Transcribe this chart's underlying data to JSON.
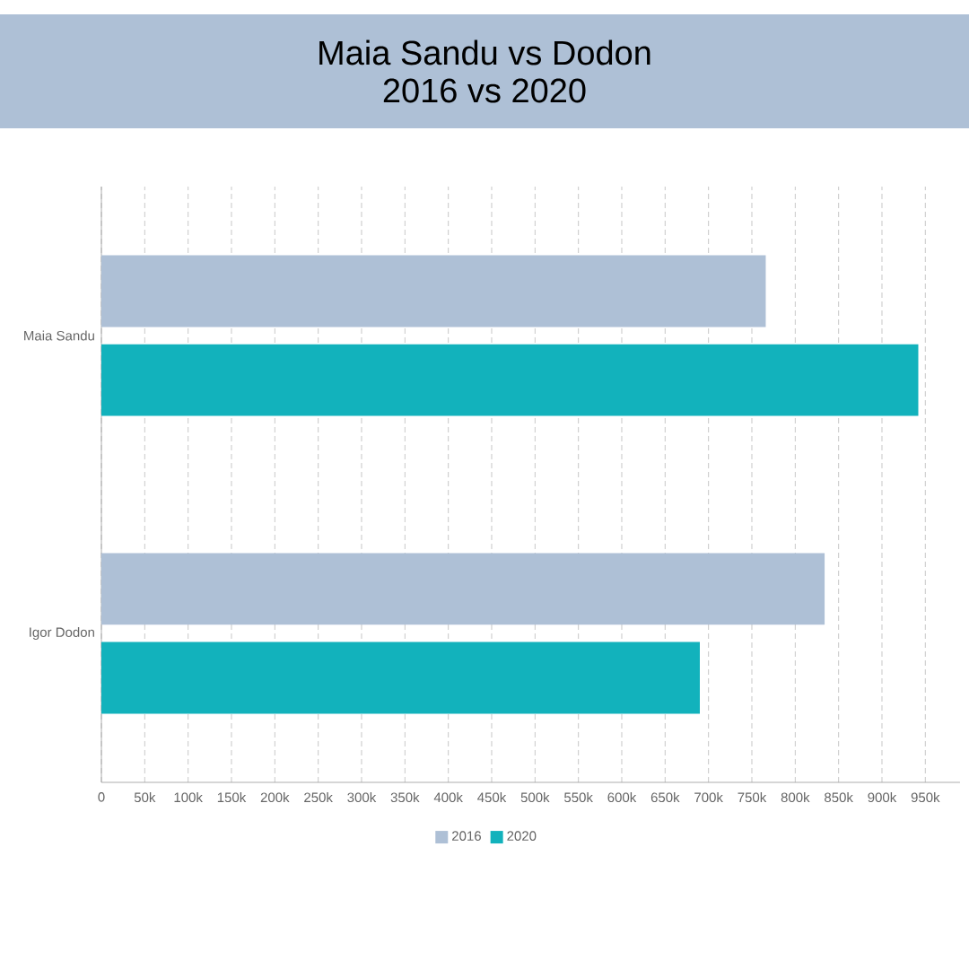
{
  "chart_data": {
    "type": "bar",
    "orientation": "horizontal",
    "title": "Maia Sandu vs Dodon",
    "subtitle": "2016 vs 2020",
    "categories": [
      "Maia Sandu",
      "Igor Dodon"
    ],
    "series": [
      {
        "name": "2016",
        "color": "#aec0d6",
        "values": [
          766000,
          834000
        ]
      },
      {
        "name": "2020",
        "color": "#12b2bc",
        "values": [
          942000,
          690000
        ]
      }
    ],
    "xlim": [
      0,
      990000
    ],
    "xticks": [
      0,
      {
        "value": 50000,
        "label": "50k"
      },
      {
        "value": 100000,
        "label": "100k"
      },
      {
        "value": 150000,
        "label": "150k"
      },
      {
        "value": 200000,
        "label": "200k"
      },
      {
        "value": 250000,
        "label": "250k"
      },
      {
        "value": 300000,
        "label": "300k"
      },
      {
        "value": 350000,
        "label": "350k"
      },
      {
        "value": 400000,
        "label": "400k"
      },
      {
        "value": 450000,
        "label": "450k"
      },
      {
        "value": 500000,
        "label": "500k"
      },
      {
        "value": 550000,
        "label": "550k"
      },
      {
        "value": 600000,
        "label": "600k"
      },
      {
        "value": 650000,
        "label": "650k"
      },
      {
        "value": 700000,
        "label": "700k"
      },
      {
        "value": 750000,
        "label": "750k"
      },
      {
        "value": 800000,
        "label": "800k"
      },
      {
        "value": 850000,
        "label": "850k"
      },
      {
        "value": 900000,
        "label": "900k"
      },
      {
        "value": 950000,
        "label": "950k"
      }
    ],
    "grid": "x",
    "legend": "bottom"
  }
}
